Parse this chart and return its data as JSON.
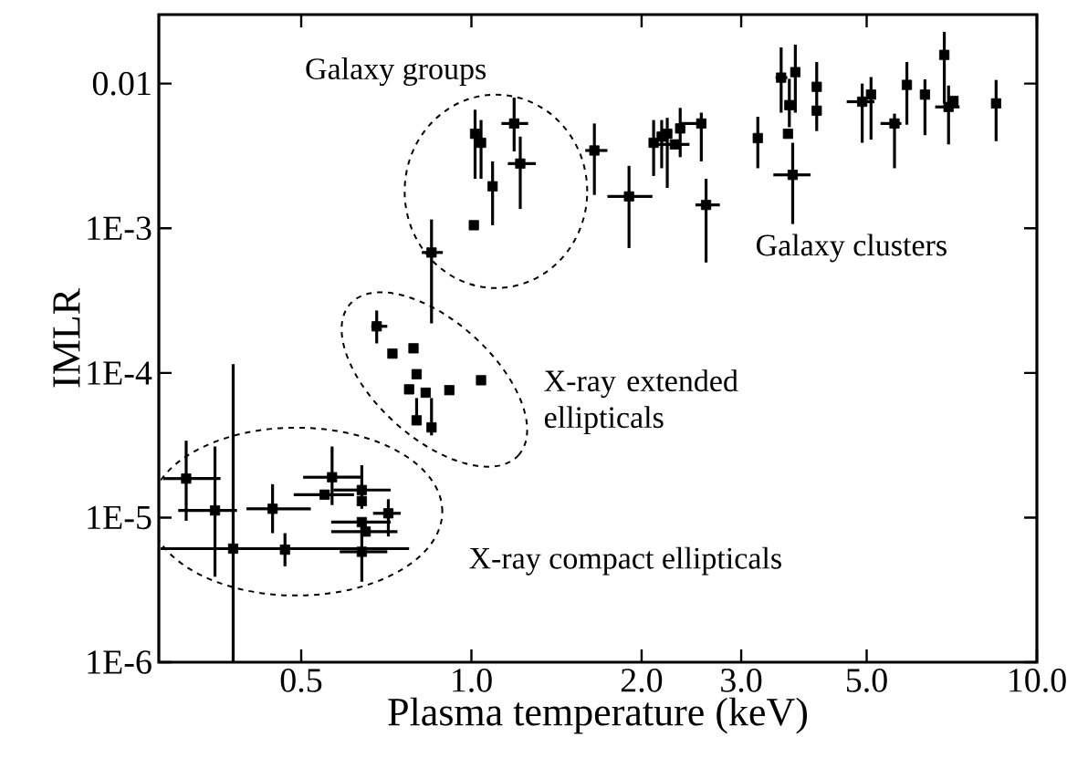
{
  "chart_data": {
    "type": "scatter",
    "xlabel": "Plasma temperature (keV)",
    "ylabel": "IMLR",
    "log": "xy",
    "grid": false,
    "legend": false,
    "marker": "square",
    "annotations": [
      "Galaxy groups",
      "Galaxy clusters",
      "X-ray extended ellipticals",
      "X-ray compact ellipticals"
    ],
    "xlim": [
      0.28,
      10
    ],
    "ylim": [
      1e-06,
      0.03
    ],
    "xticks": [
      0.5,
      {
        "value": 1,
        "label": "1.0"
      },
      {
        "value": 2,
        "label": "2.0"
      },
      {
        "value": 3,
        "label": "3.0"
      },
      {
        "value": 5,
        "label": "5.0"
      },
      {
        "value": 10,
        "label": "10.0"
      }
    ],
    "yticks": [
      {
        "value": 1e-06,
        "label": "1E-6"
      },
      {
        "value": 1e-05,
        "label": "1E-5"
      },
      {
        "value": 0.0001,
        "label": "1E-4"
      },
      {
        "value": 0.001,
        "label": "1E-3"
      },
      0.01
    ],
    "series": [
      {
        "color": "#000000",
        "x": [
          0.313,
          0.352,
          0.379,
          0.445,
          0.468,
          0.55,
          0.567,
          0.64,
          0.64,
          0.64,
          0.65,
          0.64,
          0.713,
          0.68,
          0.725,
          0.79,
          0.776,
          0.8,
          0.83,
          0.8,
          0.85,
          0.914,
          1.04,
          0.85,
          1.01,
          1.015,
          1.04,
          1.09,
          1.19,
          1.22,
          1.65,
          1.9,
          2.1,
          2.17,
          2.22,
          2.29,
          2.34,
          2.55,
          2.6,
          3.21,
          3.53,
          3.65,
          3.74,
          3.63,
          3.7,
          4.08,
          4.08,
          4.91,
          5.09,
          5.6,
          5.89,
          6.34,
          6.86,
          6.98,
          7.12,
          8.47
        ],
        "values": [
          1.86e-05,
          1.12e-05,
          6.1e-06,
          1.15e-05,
          6e-06,
          1.44e-05,
          1.9e-05,
          1.55e-05,
          1.3e-05,
          9.3e-06,
          8e-06,
          5.8e-06,
          1.07e-05,
          0.00021,
          0.000136,
          0.000148,
          7.7e-05,
          9.8e-05,
          7.3e-05,
          4.7e-05,
          4.2e-05,
          7.6e-05,
          8.9e-05,
          0.00068,
          0.00105,
          0.0045,
          0.0039,
          0.00195,
          0.0053,
          0.0028,
          0.00345,
          0.00166,
          0.0039,
          0.0043,
          0.0045,
          0.0038,
          0.0049,
          0.0053,
          0.00145,
          0.0042,
          0.011,
          0.0071,
          0.012,
          0.0045,
          0.00234,
          0.0095,
          0.0065,
          0.0075,
          0.0084,
          0.0053,
          0.0098,
          0.0084,
          0.0158,
          0.0069,
          0.0076,
          0.0073
        ],
        "errors": [
          [
            9.5e-06,
            3.4e-05
          ],
          [
            3.9e-06,
            3.1e-05
          ],
          [
            1e-06,
            0.000115
          ],
          [
            7.8e-06,
            1.7e-05
          ],
          [
            4.6e-06,
            7.8e-06
          ],
          null,
          [
            1.22e-05,
            3.1e-05
          ],
          [
            1.15e-05,
            2.3e-05
          ],
          null,
          null,
          null,
          [
            3.6e-06,
            9.1e-06
          ],
          [
            7.4e-06,
            1.34e-05
          ],
          [
            0.00016,
            0.00027
          ],
          null,
          null,
          null,
          null,
          null,
          [
            4.7e-05,
            6.7e-05
          ],
          [
            3.7e-05,
            6.7e-05
          ],
          null,
          null,
          [
            0.00022,
            0.00115
          ],
          null,
          [
            0.0022,
            0.0066
          ],
          [
            0.0022,
            0.0056
          ],
          [
            0.00105,
            0.0029
          ],
          [
            0.0034,
            0.008
          ],
          [
            0.00136,
            0.0043
          ],
          [
            0.0017,
            0.0053
          ],
          [
            0.00073,
            0.0027
          ],
          [
            0.0023,
            0.0056
          ],
          [
            0.0026,
            0.0056
          ],
          [
            0.0019,
            0.0058
          ],
          null,
          [
            0.0031,
            0.0068
          ],
          [
            0.0029,
            0.0063
          ],
          [
            0.00058,
            0.0022
          ],
          [
            0.0026,
            0.0059
          ],
          [
            0.0063,
            0.0178
          ],
          [
            0.005,
            0.0108
          ],
          [
            0.0063,
            0.0186
          ],
          null,
          [
            0.00107,
            0.0039
          ],
          [
            0.0047,
            0.0141
          ],
          null,
          [
            0.0039,
            0.01
          ],
          [
            0.0041,
            0.0111
          ],
          [
            0.0026,
            0.0062
          ],
          [
            0.0052,
            0.0141
          ],
          [
            0.0044,
            0.0107
          ],
          [
            0.0073,
            0.0228
          ],
          [
            0.0038,
            0.0097
          ],
          null,
          [
            0.004,
            0.0106
          ]
        ],
        "xerrors": [
          [
            0.285,
            0.36
          ],
          [
            0.303,
            0.385
          ],
          [
            0.282,
            0.776
          ],
          [
            0.4,
            0.52
          ],
          null,
          [
            0.485,
            0.62
          ],
          [
            0.504,
            0.64
          ],
          [
            0.57,
            0.72
          ],
          null,
          [
            0.565,
            0.72
          ],
          [
            0.565,
            0.74
          ],
          [
            0.585,
            0.71
          ],
          [
            0.67,
            0.75
          ],
          [
            0.665,
            0.71
          ],
          null,
          null,
          null,
          null,
          null,
          null,
          null,
          null,
          null,
          [
            0.817,
            0.89
          ],
          null,
          null,
          null,
          null,
          [
            1.13,
            1.26
          ],
          [
            1.16,
            1.3
          ],
          [
            1.59,
            1.74
          ],
          [
            1.74,
            2.09
          ],
          null,
          null,
          null,
          [
            2.12,
            2.43
          ],
          null,
          [
            2.33,
            2.58
          ],
          [
            2.49,
            2.75
          ],
          null,
          [
            3.45,
            3.62
          ],
          null,
          null,
          null,
          [
            3.42,
            3.98
          ],
          null,
          null,
          [
            4.61,
            5.16
          ],
          null,
          [
            5.29,
            5.76
          ],
          null,
          null,
          null,
          [
            6.61,
            7.3
          ],
          null,
          null
        ]
      }
    ]
  }
}
